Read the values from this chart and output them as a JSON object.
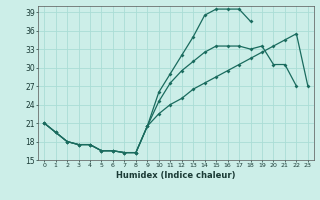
{
  "xlabel": "Humidex (Indice chaleur)",
  "background_color": "#cceee8",
  "line_color": "#1a6b5e",
  "grid_color": "#aaddd5",
  "xlim": [
    -0.5,
    23.5
  ],
  "ylim": [
    15,
    40
  ],
  "yticks": [
    15,
    18,
    21,
    24,
    27,
    30,
    33,
    36,
    39
  ],
  "xticks": [
    0,
    1,
    2,
    3,
    4,
    5,
    6,
    7,
    8,
    9,
    10,
    11,
    12,
    13,
    14,
    15,
    16,
    17,
    18,
    19,
    20,
    21,
    22,
    23
  ],
  "line1_x": [
    0,
    1,
    2,
    3,
    4,
    5,
    6,
    7,
    8,
    9,
    10,
    11,
    12,
    13,
    14,
    15,
    16,
    17,
    18,
    19,
    20,
    21
  ],
  "line1_y": [
    21.0,
    19.5,
    18.0,
    17.5,
    17.5,
    16.5,
    16.5,
    16.2,
    16.2,
    20.5,
    26.0,
    29.0,
    32.0,
    35.0,
    38.5,
    39.5,
    39.5,
    39.5,
    37.5,
    null,
    null,
    null
  ],
  "line2_x": [
    0,
    1,
    2,
    3,
    4,
    5,
    6,
    7,
    8,
    9,
    10,
    11,
    12,
    13,
    14,
    15,
    16,
    17,
    18,
    19,
    20,
    21,
    22,
    23
  ],
  "line2_y": [
    21.0,
    19.5,
    18.0,
    17.5,
    17.5,
    16.5,
    16.5,
    16.2,
    16.2,
    20.5,
    24.5,
    27.5,
    29.5,
    31.0,
    32.5,
    33.5,
    33.5,
    33.5,
    33.0,
    33.5,
    30.5,
    30.5,
    27.0,
    null
  ],
  "line3_x": [
    0,
    1,
    2,
    3,
    4,
    5,
    6,
    7,
    8,
    9,
    10,
    11,
    12,
    13,
    14,
    15,
    16,
    17,
    18,
    19,
    20,
    21,
    22,
    23
  ],
  "line3_y": [
    21.0,
    19.5,
    18.0,
    17.5,
    17.5,
    16.5,
    16.5,
    16.2,
    16.2,
    20.5,
    22.5,
    24.0,
    25.0,
    26.5,
    27.5,
    28.5,
    29.5,
    30.5,
    31.5,
    32.5,
    33.5,
    34.5,
    35.5,
    27.0
  ]
}
